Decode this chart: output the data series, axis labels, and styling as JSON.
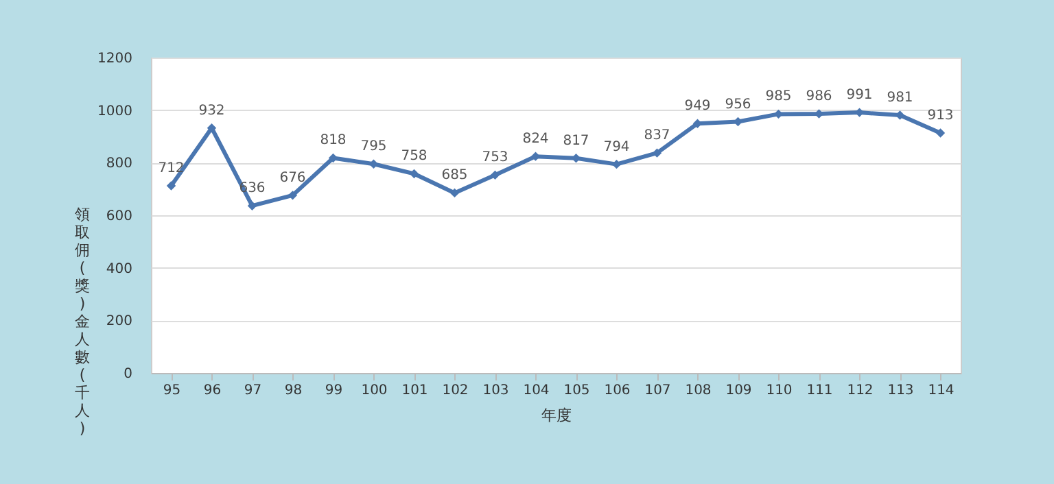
{
  "chart_data": {
    "type": "line",
    "xlabel": "年度",
    "ylabel": "領取佣(獎)金人數(千人)",
    "categories": [
      "95",
      "96",
      "97",
      "98",
      "99",
      "100",
      "101",
      "102",
      "103",
      "104",
      "105",
      "106",
      "107",
      "108",
      "109",
      "110",
      "111",
      "112",
      "113",
      "114"
    ],
    "series": [
      {
        "color": "#4a76b0",
        "values": [
          712,
          932,
          636,
          676,
          818,
          795,
          758,
          685,
          753,
          824,
          817,
          794,
          837,
          949,
          956,
          985,
          986,
          991,
          981,
          913
        ]
      }
    ],
    "ylim": [
      0,
      1200
    ],
    "yticks": [
      0,
      200,
      400,
      600,
      800,
      1000,
      1200
    ],
    "grid": "y",
    "marker": "diamond",
    "line_style": "solid",
    "data_labels": true
  }
}
